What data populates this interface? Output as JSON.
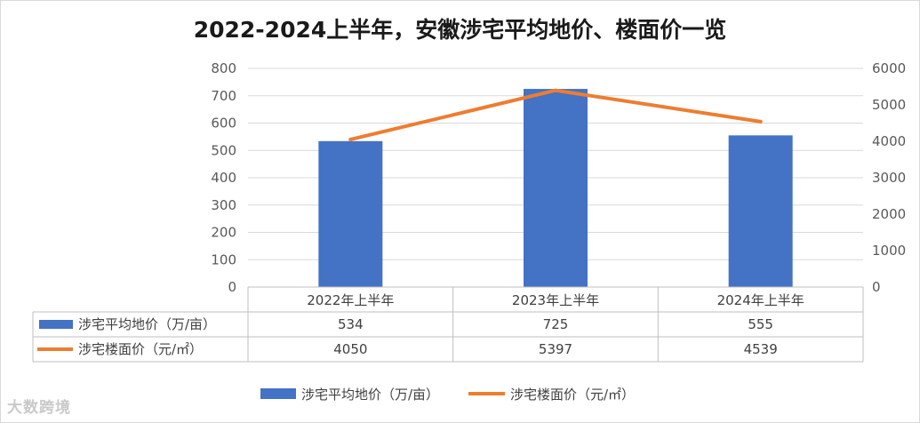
{
  "chart_data": {
    "type": "bar",
    "title": "2022-2024上半年，安徽涉宅平均地价、楼面价一览",
    "categories": [
      "2022年上半年",
      "2023年上半年",
      "2024年上半年"
    ],
    "y_left_ticks": [
      "0",
      "100",
      "200",
      "300",
      "400",
      "500",
      "600",
      "700",
      "800"
    ],
    "y_right_ticks": [
      "0",
      "1000",
      "2000",
      "3000",
      "4000",
      "5000",
      "6000"
    ],
    "ylim_left": [
      0,
      800
    ],
    "ylim_right": [
      0,
      6000
    ],
    "grid": true,
    "legend_position": "bottom",
    "series": [
      {
        "name": "涉宅平均地价（万/亩）",
        "type": "bar",
        "axis": "left",
        "color": "#4472C4",
        "values": [
          534,
          725,
          555
        ],
        "labels": [
          "534",
          "725",
          "555"
        ]
      },
      {
        "name": "涉宅楼面价（元/㎡）",
        "type": "line",
        "axis": "right",
        "color": "#ED7D31",
        "values": [
          4050,
          5397,
          4539
        ],
        "labels": [
          "4050",
          "5397",
          "4539"
        ]
      }
    ]
  },
  "watermark": "大数跨境"
}
